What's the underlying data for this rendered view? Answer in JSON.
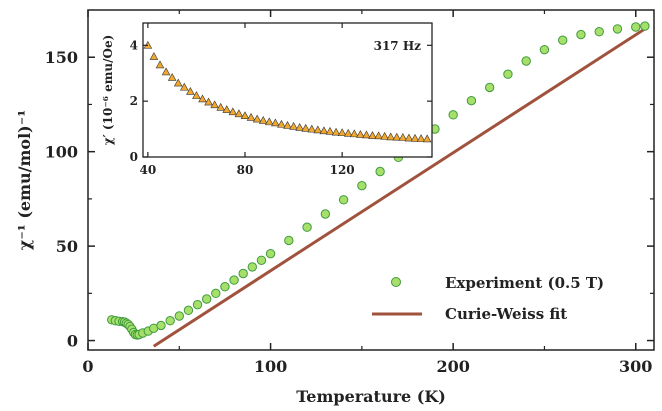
{
  "chart_data": [
    {
      "type": "scatter",
      "xlabel": "Temperature (K)",
      "ylabel": "χ⁻¹ (emu/mol)⁻¹",
      "xlim": [
        0,
        310
      ],
      "ylim": [
        -5,
        175
      ],
      "xticks": [
        "0",
        "100",
        "200",
        "300"
      ],
      "yticks": [
        "0",
        "50",
        "100",
        "150"
      ],
      "grid": false,
      "legend_position": "lower-right",
      "series": [
        {
          "name": "Experiment (0.5 T)",
          "kind": "scatter",
          "marker": "circle",
          "color": "#a6e06b",
          "edge_color": "#3f9a3f",
          "x": [
            13,
            15,
            17,
            19,
            20,
            21,
            22,
            23,
            24,
            25,
            26,
            27,
            28,
            30,
            33,
            36,
            40,
            45,
            50,
            55,
            60,
            65,
            70,
            75,
            80,
            85,
            90,
            95,
            100,
            110,
            120,
            130,
            140,
            150,
            160,
            170,
            180,
            190,
            200,
            210,
            220,
            230,
            240,
            250,
            260,
            270,
            280,
            290,
            300,
            305
          ],
          "y": [
            11,
            10.5,
            10.2,
            10,
            9.8,
            9.2,
            8.5,
            7.5,
            6,
            4.3,
            3.2,
            3,
            3.2,
            4,
            5,
            6.5,
            8,
            10.5,
            13,
            16,
            19,
            22,
            25,
            28.5,
            32,
            35.5,
            39,
            42.5,
            46,
            53,
            60,
            67,
            74.5,
            82,
            89.5,
            97,
            104.5,
            112,
            119.5,
            127,
            134,
            141,
            148,
            154,
            159,
            162,
            163.5,
            165,
            166,
            166.5
          ]
        },
        {
          "name": "Curie-Weiss fit",
          "kind": "line",
          "color": "#a0523d",
          "x": [
            36,
            305
          ],
          "y": [
            -3,
            165
          ]
        }
      ]
    },
    {
      "type": "scatter",
      "xlabel": "",
      "ylabel": "χ′ (10⁻⁶ emu/Oe)",
      "xlim": [
        38,
        157
      ],
      "ylim": [
        0,
        4.8
      ],
      "xticks": [
        "40",
        "80",
        "120"
      ],
      "yticks": [
        "0",
        "2",
        "4"
      ],
      "annotation": "317 Hz",
      "series": [
        {
          "kind": "scatter",
          "marker": "triangle",
          "color": "#f0a830",
          "edge_color": "#333333",
          "x": [
            40,
            42.5,
            45,
            47.5,
            50,
            52.5,
            55,
            57.5,
            60,
            62.5,
            65,
            67.5,
            70,
            72.5,
            75,
            77.5,
            80,
            82.5,
            85,
            87.5,
            90,
            92.5,
            95,
            97.5,
            100,
            102.5,
            105,
            107.5,
            110,
            112.5,
            115,
            117.5,
            120,
            122.5,
            125,
            127.5,
            130,
            132.5,
            135,
            137.5,
            140,
            142.5,
            145,
            147.5,
            150,
            152.5,
            155
          ],
          "y": [
            4.0,
            3.6,
            3.3,
            3.05,
            2.85,
            2.65,
            2.5,
            2.35,
            2.2,
            2.08,
            1.97,
            1.87,
            1.78,
            1.7,
            1.62,
            1.55,
            1.48,
            1.42,
            1.36,
            1.31,
            1.26,
            1.22,
            1.17,
            1.13,
            1.1,
            1.06,
            1.03,
            1.0,
            0.97,
            0.94,
            0.92,
            0.89,
            0.87,
            0.85,
            0.83,
            0.81,
            0.79,
            0.77,
            0.76,
            0.74,
            0.72,
            0.71,
            0.7,
            0.68,
            0.67,
            0.66,
            0.65
          ]
        }
      ]
    }
  ]
}
